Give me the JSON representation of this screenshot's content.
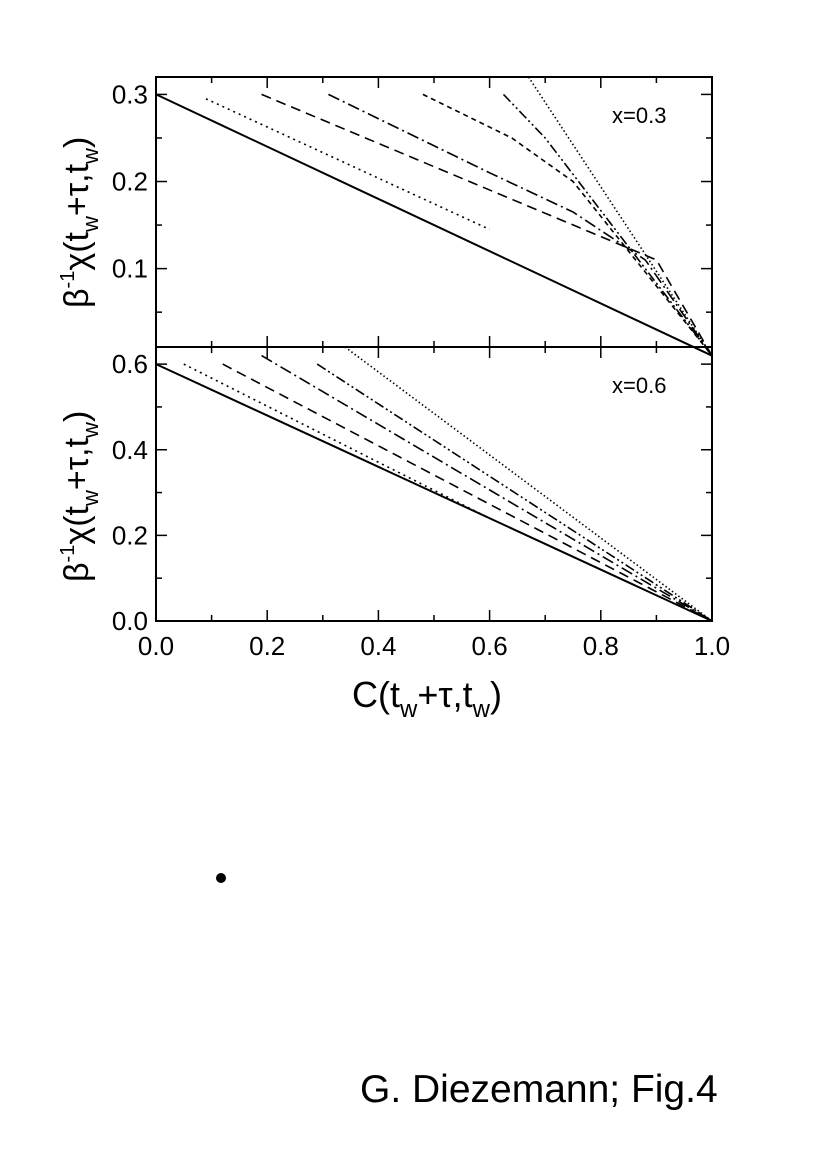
{
  "chart_data": [
    {
      "type": "line",
      "annotation": "x=0.3",
      "ylabel_main": "β",
      "ylabel_sup": "-1",
      "ylabel_func": "χ(t",
      "ylabel_sub1": "w",
      "ylabel_mid": "+τ,t",
      "ylabel_sub2": "w",
      "ylabel_end": ")",
      "xlim": [
        0.0,
        1.0
      ],
      "ylim": [
        0.01,
        0.32
      ],
      "yticks": [
        0.1,
        0.2,
        0.3
      ],
      "ytick_labels": [
        "0.1",
        "0.2",
        "0.3"
      ],
      "series": [
        {
          "style": "solid",
          "x": [
            0.0,
            1.0
          ],
          "y": [
            0.3,
            0.0
          ]
        },
        {
          "style": "dotted",
          "x": [
            0.09,
            0.6
          ],
          "y": [
            0.295,
            0.145
          ]
        },
        {
          "style": "dashed",
          "x": [
            0.19,
            0.9,
            1.0
          ],
          "y": [
            0.3,
            0.11,
            0.0
          ]
        },
        {
          "style": "dashdot",
          "x": [
            0.31,
            0.6,
            0.75,
            0.88,
            1.0
          ],
          "y": [
            0.3,
            0.21,
            0.165,
            0.11,
            0.0
          ]
        },
        {
          "style": "shortdash",
          "x": [
            0.48,
            0.64,
            0.75,
            1.0
          ],
          "y": [
            0.3,
            0.25,
            0.2,
            0.0
          ]
        },
        {
          "style": "dashdotdot",
          "x": [
            0.625,
            0.7,
            1.0
          ],
          "y": [
            0.3,
            0.25,
            0.0
          ]
        },
        {
          "style": "fine-dotted",
          "x": [
            0.67,
            1.0
          ],
          "y": [
            0.32,
            0.0
          ]
        }
      ]
    },
    {
      "type": "line",
      "annotation": "x=0.6",
      "ylabel_main": "β",
      "ylabel_sup": "-1",
      "ylabel_func": "χ(t",
      "ylabel_sub1": "w",
      "ylabel_mid": "+τ,t",
      "ylabel_sub2": "w",
      "ylabel_end": ")",
      "xlabel_main": "C(t",
      "xlabel_sub1": "w",
      "xlabel_mid": "+τ,t",
      "xlabel_sub2": "w",
      "xlabel_end": ")",
      "xlim": [
        0.0,
        1.0
      ],
      "ylim": [
        0.0,
        0.64
      ],
      "yticks": [
        0.0,
        0.2,
        0.4,
        0.6
      ],
      "ytick_labels": [
        "0.0",
        "0.2",
        "0.4",
        "0.6"
      ],
      "xticks": [
        0.0,
        0.2,
        0.4,
        0.6,
        0.8,
        1.0
      ],
      "xtick_labels": [
        "0.0",
        "0.2",
        "0.4",
        "0.6",
        "0.8",
        "1.0"
      ],
      "series": [
        {
          "style": "solid",
          "x": [
            0.0,
            1.0
          ],
          "y": [
            0.6,
            0.0
          ]
        },
        {
          "style": "dotted",
          "x": [
            0.05,
            0.6
          ],
          "y": [
            0.6,
            0.24
          ]
        },
        {
          "style": "dashed",
          "x": [
            0.12,
            1.0
          ],
          "y": [
            0.6,
            0.0
          ]
        },
        {
          "style": "dashdot",
          "x": [
            0.19,
            1.0
          ],
          "y": [
            0.62,
            0.0
          ]
        },
        {
          "style": "dashdotdot",
          "x": [
            0.29,
            1.0
          ],
          "y": [
            0.6,
            0.0
          ]
        },
        {
          "style": "fine-dotted",
          "x": [
            0.34,
            1.0
          ],
          "y": [
            0.64,
            0.0
          ]
        }
      ]
    }
  ],
  "caption": "G. Diezemann; Fig.4"
}
